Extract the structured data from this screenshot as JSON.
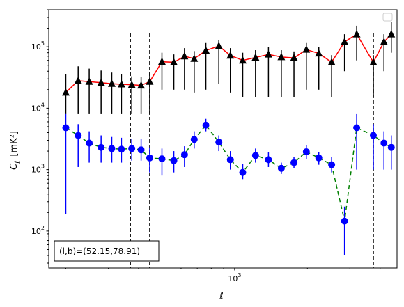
{
  "chart_data": {
    "type": "scatter",
    "xlabel": "ℓ",
    "ylabel_main": "C",
    "ylabel_sub": "ℓ",
    "ylabel_unit": "[mK²]",
    "x_scale": "log",
    "y_scale": "log",
    "xlim": [
      170,
      4700
    ],
    "ylim": [
      25,
      400000
    ],
    "x_tick_labels": [
      {
        "value": 1000,
        "base": "10",
        "exp": "3"
      }
    ],
    "y_tick_labels": [
      {
        "value": 100,
        "base": "10",
        "exp": "2"
      },
      {
        "value": 1000,
        "base": "10",
        "exp": "3"
      },
      {
        "value": 10000,
        "base": "10",
        "exp": "4"
      },
      {
        "value": 100000,
        "base": "10",
        "exp": "5"
      }
    ],
    "vlines": [
      370,
      445,
      3750
    ],
    "legend": {
      "position": "upper right",
      "entries": []
    },
    "annotation": "(l,b)=(52.15,78.91)",
    "series": [
      {
        "marker": "triangle",
        "color": "#000000",
        "line_color": "#ff0000",
        "line_style": "solid",
        "x": [
          200,
          225,
          250,
          280,
          310,
          340,
          375,
          410,
          445,
          500,
          560,
          620,
          680,
          760,
          860,
          960,
          1080,
          1220,
          1380,
          1560,
          1760,
          1980,
          2230,
          2520,
          2850,
          3200,
          3750,
          4150,
          4450
        ],
        "y": [
          18000,
          28000,
          27000,
          26000,
          25000,
          24500,
          24000,
          23500,
          27000,
          57000,
          56000,
          70000,
          64000,
          87000,
          103000,
          72000,
          60000,
          67000,
          75000,
          68000,
          66000,
          90000,
          78000,
          56000,
          120000,
          160000,
          56000,
          120000,
          160000
        ],
        "err_low": [
          8000,
          8000,
          8000,
          8000,
          8000,
          8000,
          8000,
          8000,
          8000,
          20000,
          20000,
          20000,
          18000,
          20000,
          25000,
          18000,
          15000,
          15000,
          15000,
          15000,
          15000,
          20000,
          20000,
          15000,
          40000,
          60000,
          15000,
          40000,
          80000
        ],
        "err_high": [
          36000,
          48000,
          44000,
          41000,
          38000,
          36000,
          33000,
          32000,
          38000,
          80000,
          75000,
          95000,
          85000,
          115000,
          130000,
          95000,
          80000,
          88000,
          98000,
          88000,
          84000,
          115000,
          100000,
          73000,
          160000,
          220000,
          73000,
          160000,
          250000
        ]
      },
      {
        "marker": "circle",
        "color": "#0000ff",
        "line_color": "#008000",
        "line_style": "dashed",
        "x": [
          200,
          225,
          250,
          280,
          310,
          340,
          375,
          410,
          445,
          500,
          560,
          620,
          680,
          760,
          860,
          960,
          1080,
          1220,
          1380,
          1560,
          1760,
          1980,
          2230,
          2520,
          2850,
          3200,
          3750,
          4150,
          4450
        ],
        "y": [
          4800,
          3600,
          2700,
          2300,
          2200,
          2150,
          2200,
          2100,
          1550,
          1500,
          1400,
          1750,
          3100,
          5300,
          2800,
          1450,
          900,
          1700,
          1450,
          1050,
          1300,
          1950,
          1550,
          1200,
          145,
          4800,
          3600,
          2700,
          2300
        ],
        "err_low": [
          190,
          1100,
          1300,
          1300,
          1300,
          1300,
          1400,
          1400,
          900,
          800,
          900,
          1100,
          2200,
          4200,
          2000,
          1000,
          700,
          1300,
          1100,
          850,
          1050,
          1500,
          1200,
          900,
          40,
          1000,
          1000,
          1000,
          1000
        ],
        "err_high": [
          8000,
          5500,
          4200,
          3600,
          3400,
          3300,
          3200,
          3200,
          2300,
          2200,
          2000,
          2400,
          4200,
          6700,
          3600,
          2000,
          1250,
          2200,
          1900,
          1300,
          1600,
          2500,
          1950,
          1600,
          250,
          8000,
          5500,
          4200,
          3600
        ]
      }
    ]
  }
}
